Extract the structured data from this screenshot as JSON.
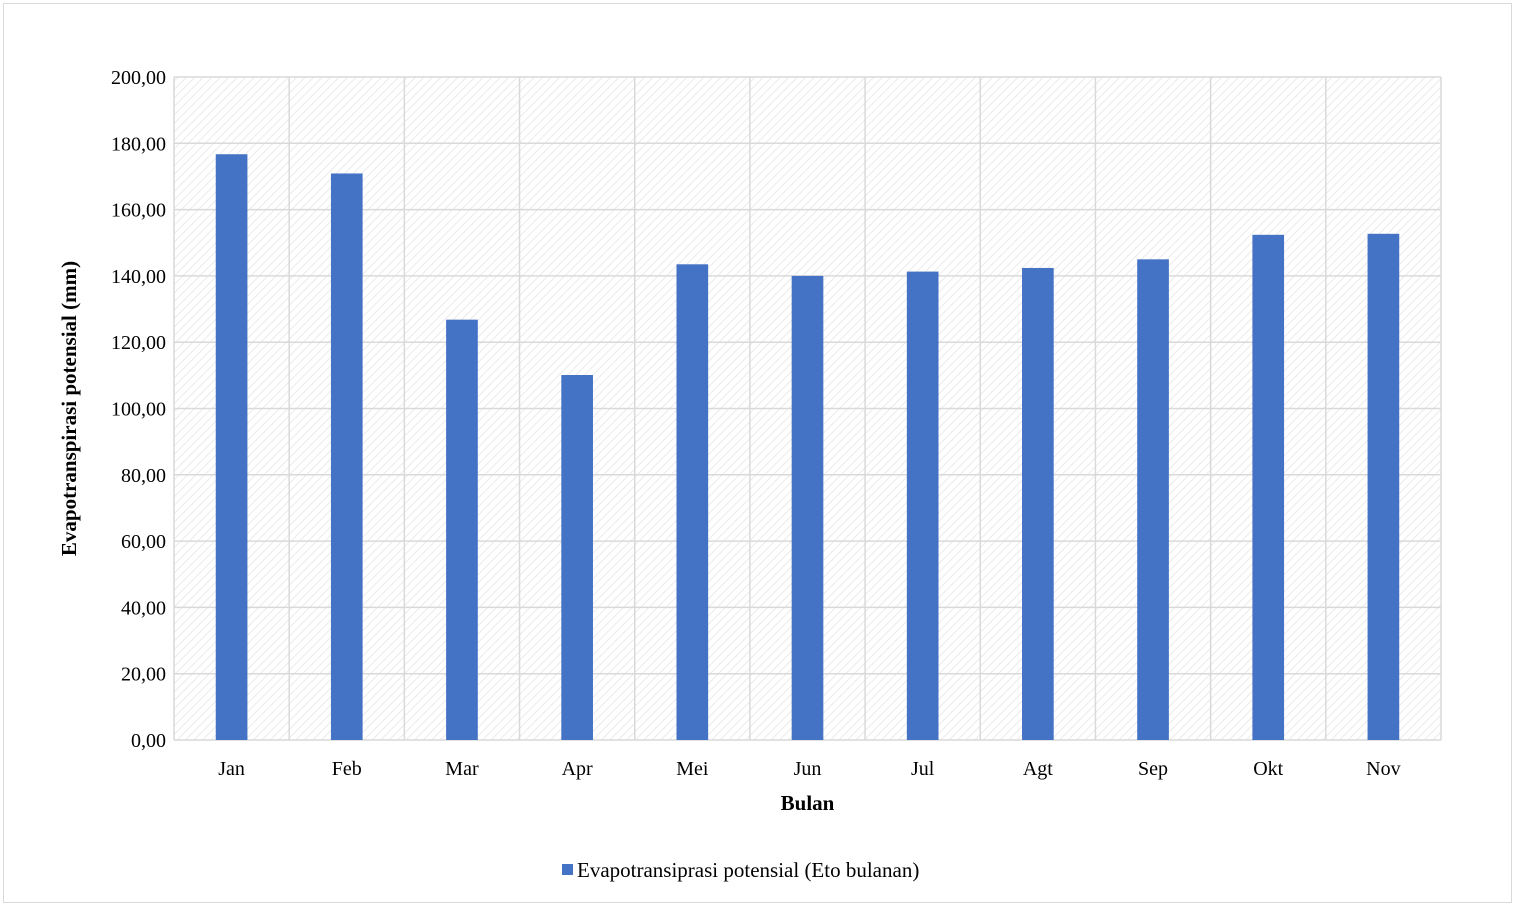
{
  "chart_data": {
    "type": "bar",
    "categories": [
      "Jan",
      "Feb",
      "Mar",
      "Apr",
      "Mei",
      "Jun",
      "Jul",
      "Agt",
      "Sep",
      "Okt",
      "Nov"
    ],
    "series": [
      {
        "name": "Evapotransiprasi potensial (Eto bulanan)",
        "values": [
          176.7,
          170.9,
          126.8,
          110.1,
          143.5,
          140.0,
          141.3,
          142.4,
          145.0,
          152.4,
          152.7
        ]
      }
    ],
    "xlabel": "Bulan",
    "ylabel": "Evapotranspirasi potensial (mm)",
    "ylim": [
      0,
      200
    ],
    "yticks": [
      "0,00",
      "20,00",
      "40,00",
      "60,00",
      "80,00",
      "100,00",
      "120,00",
      "140,00",
      "160,00",
      "180,00",
      "200,00"
    ],
    "grid": true,
    "legend_position": "bottom",
    "colors": {
      "bar": "#4472c4",
      "grid": "#d9d9d9",
      "hatch": "#e4e4e4"
    }
  }
}
